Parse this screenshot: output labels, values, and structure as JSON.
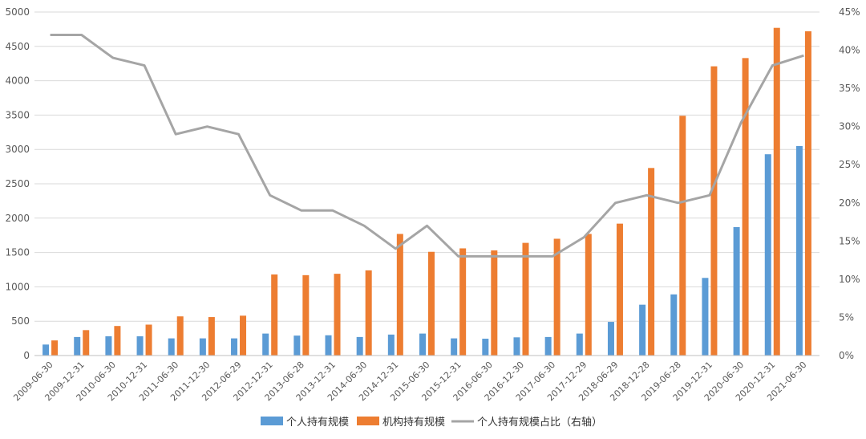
{
  "chart_data": {
    "type": "bar",
    "title": "",
    "xlabel": "",
    "ylabel": "",
    "categories": [
      "2009-06-30",
      "2009-12-31",
      "2010-06-30",
      "2010-12-31",
      "2011-06-30",
      "2011-12-30",
      "2012-06-29",
      "2012-12-31",
      "2013-06-28",
      "2013-12-31",
      "2014-06-30",
      "2014-12-31",
      "2015-06-30",
      "2015-12-31",
      "2016-06-30",
      "2016-12-30",
      "2017-06-30",
      "2017-12-29",
      "2018-06-29",
      "2018-12-28",
      "2019-06-28",
      "2019-12-31",
      "2020-06-30",
      "2020-12-31",
      "2021-06-30"
    ],
    "ylim": [
      0,
      5000
    ],
    "y_ticks": [
      "0",
      "500",
      "1000",
      "1500",
      "2000",
      "2500",
      "3000",
      "3500",
      "4000",
      "4500",
      "5000"
    ],
    "ylim_right": [
      0,
      45
    ],
    "y_right_ticks": [
      "0%",
      "5%",
      "10%",
      "15%",
      "20%",
      "25%",
      "30%",
      "35%",
      "40%",
      "45%"
    ],
    "grid": true,
    "legend_position": "bottom",
    "series": [
      {
        "name": "个人持有规模",
        "kind": "bar",
        "axis": "left",
        "color": "#5b9bd5",
        "values": [
          160,
          270,
          280,
          280,
          250,
          250,
          250,
          320,
          290,
          295,
          270,
          305,
          320,
          250,
          245,
          265,
          270,
          320,
          490,
          740,
          890,
          1130,
          1870,
          2930,
          3050
        ]
      },
      {
        "name": "机构持有规模",
        "kind": "bar",
        "axis": "left",
        "color": "#ed7d31",
        "values": [
          220,
          370,
          430,
          450,
          570,
          560,
          580,
          1180,
          1170,
          1190,
          1240,
          1770,
          1510,
          1560,
          1530,
          1640,
          1700,
          1770,
          1920,
          2730,
          3490,
          4210,
          4330,
          4770,
          4720
        ]
      },
      {
        "name": "个人持有规模占比（右轴）",
        "kind": "line",
        "axis": "right",
        "color": "#a5a5a5",
        "values": [
          42,
          42,
          39,
          38,
          29,
          30,
          29,
          21,
          19,
          19,
          17,
          14,
          17,
          13,
          13,
          13,
          13,
          15.5,
          20,
          21,
          20,
          21,
          30.5,
          38,
          39.3
        ]
      }
    ]
  }
}
